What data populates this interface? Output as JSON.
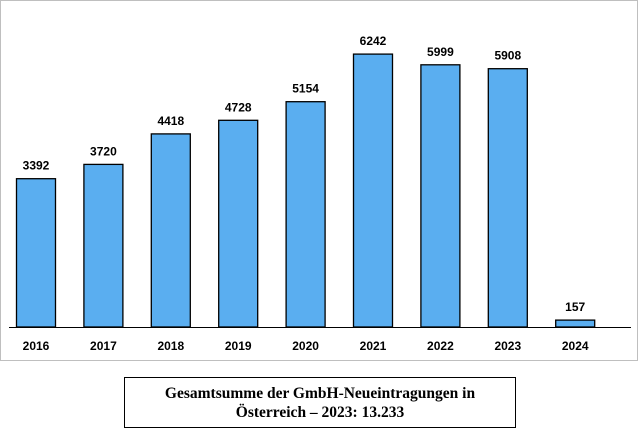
{
  "chart_data": {
    "type": "bar",
    "categories": [
      "2016",
      "2017",
      "2018",
      "2019",
      "2020",
      "2021",
      "2022",
      "2023",
      "2024"
    ],
    "values": [
      3392,
      3720,
      4418,
      4728,
      5154,
      6242,
      5999,
      5908,
      157
    ],
    "value_labels": [
      "3392",
      "3720",
      "4418",
      "4728",
      "5154",
      "6242",
      "5999",
      "5908",
      "157"
    ],
    "ylim": [
      0,
      7000
    ],
    "grid": false,
    "legend": "none",
    "bar_color": "#5aaef0"
  },
  "caption": {
    "line1": "Gesamtsumme der GmbH-Neueintragungen in",
    "line2": "Österreich – 2023: 13.233"
  }
}
